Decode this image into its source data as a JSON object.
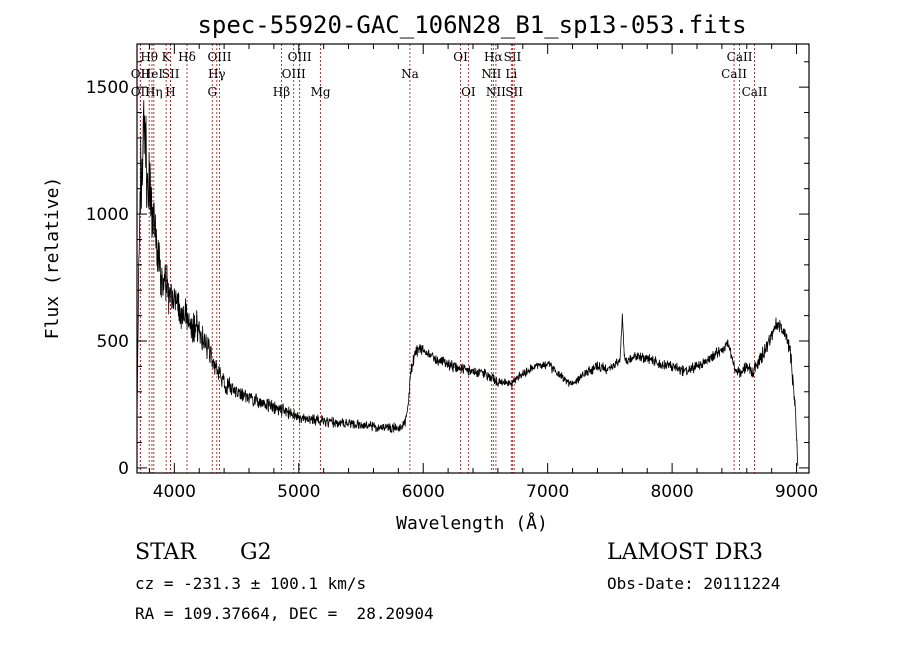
{
  "chart_data": {
    "type": "line",
    "title": "spec-55920-GAC_106N28_B1_sp13-053.fits",
    "xlabel": "Wavelength (Å)",
    "ylabel": "Flux (relative)",
    "xlim": [
      3700,
      9100
    ],
    "ylim": [
      -20,
      1670
    ],
    "x_ticks": [
      4000,
      5000,
      6000,
      7000,
      8000,
      9000
    ],
    "y_ticks": [
      0,
      500,
      1000,
      1500
    ],
    "series": [
      {
        "name": "flux",
        "x": [
          3700,
          3720,
          3740,
          3760,
          3780,
          3800,
          3820,
          3850,
          3880,
          3900,
          3930,
          3960,
          4000,
          4050,
          4100,
          4150,
          4200,
          4250,
          4300,
          4350,
          4400,
          4500,
          4600,
          4700,
          4800,
          4900,
          5000,
          5100,
          5200,
          5300,
          5400,
          5500,
          5600,
          5700,
          5800,
          5850,
          5880,
          5900,
          5930,
          5960,
          6000,
          6100,
          6200,
          6300,
          6400,
          6500,
          6560,
          6600,
          6700,
          6800,
          6900,
          7000,
          7100,
          7200,
          7300,
          7400,
          7500,
          7580,
          7600,
          7620,
          7700,
          7800,
          7900,
          8000,
          8100,
          8200,
          8300,
          8400,
          8450,
          8500,
          8550,
          8600,
          8650,
          8700,
          8750,
          8800,
          8830,
          8850,
          8900,
          8950,
          8970,
          8990,
          9000,
          9010
        ],
        "y": [
          200,
          1000,
          1250,
          1300,
          1150,
          1100,
          1000,
          900,
          830,
          760,
          720,
          680,
          650,
          620,
          600,
          560,
          540,
          500,
          440,
          380,
          330,
          300,
          280,
          260,
          240,
          220,
          200,
          190,
          185,
          180,
          175,
          170,
          165,
          160,
          155,
          170,
          260,
          380,
          440,
          470,
          460,
          430,
          410,
          390,
          380,
          370,
          350,
          340,
          330,
          370,
          400,
          410,
          360,
          330,
          370,
          400,
          390,
          420,
          600,
          420,
          440,
          430,
          410,
          400,
          380,
          400,
          430,
          470,
          490,
          400,
          370,
          400,
          380,
          420,
          470,
          520,
          560,
          570,
          540,
          460,
          350,
          250,
          120,
          10
        ],
        "noise": [
          0,
          120,
          160,
          140,
          130,
          120,
          110,
          100,
          90,
          80,
          75,
          70,
          65,
          60,
          55,
          50,
          50,
          45,
          40,
          35,
          30,
          28,
          25,
          22,
          20,
          20,
          18,
          18,
          18,
          18,
          16,
          16,
          16,
          16,
          16,
          15,
          15,
          20,
          22,
          22,
          20,
          18,
          18,
          16,
          15,
          15,
          14,
          15,
          15,
          15,
          15,
          16,
          15,
          15,
          16,
          16,
          16,
          15,
          20,
          16,
          16,
          16,
          16,
          16,
          16,
          18,
          18,
          18,
          18,
          18,
          18,
          18,
          20,
          22,
          22,
          24,
          24,
          24,
          26,
          26,
          26,
          26,
          20,
          10
        ]
      }
    ],
    "line_markers": [
      {
        "name": "OII",
        "x": 3727,
        "row": 2
      },
      {
        "name": "OII",
        "x": 3727,
        "row": 3
      },
      {
        "name": "Hθ",
        "x": 3798,
        "row": 1
      },
      {
        "name": "HeI",
        "x": 3820,
        "row": 2
      },
      {
        "name": "Hη",
        "x": 3835,
        "row": 3
      },
      {
        "name": "K",
        "x": 3934,
        "row": 1
      },
      {
        "name": "SII",
        "x": 3970,
        "row": 2
      },
      {
        "name": "H",
        "x": 3969,
        "row": 3
      },
      {
        "name": "Hδ",
        "x": 4102,
        "row": 1
      },
      {
        "name": "OIII",
        "x": 4363,
        "row": 1
      },
      {
        "name": "Hγ",
        "x": 4341,
        "row": 2
      },
      {
        "name": "G",
        "x": 4305,
        "row": 3
      },
      {
        "name": "Hβ",
        "x": 4861,
        "row": 3
      },
      {
        "name": "OIII",
        "x": 4959,
        "row": 2
      },
      {
        "name": "OIII",
        "x": 5007,
        "row": 1
      },
      {
        "name": "Mg",
        "x": 5175,
        "row": 3
      },
      {
        "name": "Na",
        "x": 5893,
        "row": 2
      },
      {
        "name": "OI",
        "x": 6300,
        "row": 1
      },
      {
        "name": "OI",
        "x": 6363,
        "row": 3
      },
      {
        "name": "NII",
        "x": 6548,
        "row": 2
      },
      {
        "name": "Hα",
        "x": 6563,
        "row": 1
      },
      {
        "name": "NII",
        "x": 6584,
        "row": 3
      },
      {
        "name": "SII",
        "x": 6717,
        "row": 1
      },
      {
        "name": "Li",
        "x": 6708,
        "row": 2
      },
      {
        "name": "SII",
        "x": 6731,
        "row": 3
      },
      {
        "name": "CaII",
        "x": 8498,
        "row": 2
      },
      {
        "name": "CaII",
        "x": 8542,
        "row": 1
      },
      {
        "name": "CaII",
        "x": 8662,
        "row": 3
      }
    ]
  },
  "info": {
    "object_class": "STAR",
    "subclass": "G2",
    "survey": "LAMOST DR3",
    "redshift": "cz = -231.3 ± 100.1 km/s",
    "obs_date": "Obs-Date: 20111224",
    "coords": "RA = 109.37664, DEC =  28.20904"
  }
}
